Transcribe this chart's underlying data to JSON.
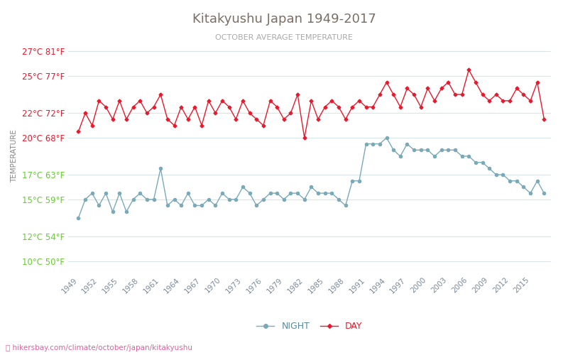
{
  "title": "Kitakyushu Japan 1949-2017",
  "subtitle": "OCTOBER AVERAGE TEMPERATURE",
  "ylabel": "TEMPERATURE",
  "url": "hikersbay.com/climate/october/japan/kitakyushu",
  "legend_night": "NIGHT",
  "legend_day": "DAY",
  "night_color": "#7aaab8",
  "day_color": "#e8192c",
  "title_color": "#7a6e65",
  "subtitle_color": "#aaaaaa",
  "ylabel_color": "#888888",
  "url_color": "#e060a0",
  "grid_color": "#d8e4ea",
  "yticks_celsius": [
    10,
    12,
    15,
    17,
    20,
    22,
    25,
    27
  ],
  "yticks_fahrenheit": [
    50,
    54,
    59,
    63,
    68,
    72,
    77,
    81
  ],
  "ytick_colors": [
    "#66cc33",
    "#66cc33",
    "#66cc33",
    "#66cc33",
    "#e8192c",
    "#e8192c",
    "#e8192c",
    "#e8192c"
  ],
  "years": [
    1949,
    1950,
    1951,
    1952,
    1953,
    1954,
    1955,
    1956,
    1957,
    1958,
    1959,
    1960,
    1961,
    1962,
    1963,
    1964,
    1965,
    1966,
    1967,
    1968,
    1969,
    1970,
    1971,
    1972,
    1973,
    1974,
    1975,
    1976,
    1977,
    1978,
    1979,
    1980,
    1981,
    1982,
    1983,
    1984,
    1985,
    1986,
    1987,
    1988,
    1989,
    1990,
    1991,
    1992,
    1993,
    1994,
    1995,
    1996,
    1997,
    1998,
    1999,
    2000,
    2001,
    2002,
    2003,
    2004,
    2005,
    2006,
    2007,
    2008,
    2009,
    2010,
    2011,
    2012,
    2013,
    2014,
    2015,
    2016,
    2017
  ],
  "day_temps": [
    20.5,
    22.0,
    21.0,
    23.0,
    22.5,
    21.5,
    23.0,
    21.5,
    22.5,
    23.0,
    22.0,
    22.5,
    23.5,
    21.5,
    21.0,
    22.5,
    21.5,
    22.5,
    21.0,
    23.0,
    22.0,
    23.0,
    22.5,
    21.5,
    23.0,
    22.0,
    21.5,
    21.0,
    23.0,
    22.5,
    21.5,
    22.0,
    23.5,
    20.0,
    23.0,
    21.5,
    22.5,
    23.0,
    22.5,
    21.5,
    22.5,
    23.0,
    22.5,
    22.5,
    23.5,
    24.5,
    23.5,
    22.5,
    24.0,
    23.5,
    22.5,
    24.0,
    23.0,
    24.0,
    24.5,
    23.5,
    23.5,
    25.5,
    24.5,
    23.5,
    23.0,
    23.5,
    23.0,
    23.0,
    24.0,
    23.5,
    23.0,
    24.5,
    21.5
  ],
  "night_temps": [
    13.5,
    15.0,
    15.5,
    14.5,
    15.5,
    14.0,
    15.5,
    14.0,
    15.0,
    15.5,
    15.0,
    15.0,
    17.5,
    14.5,
    15.0,
    14.5,
    15.5,
    14.5,
    14.5,
    15.0,
    14.5,
    15.5,
    15.0,
    15.0,
    16.0,
    15.5,
    14.5,
    15.0,
    15.5,
    15.5,
    15.0,
    15.5,
    15.5,
    15.0,
    16.0,
    15.5,
    15.5,
    15.5,
    15.0,
    14.5,
    16.5,
    16.5,
    19.5,
    19.5,
    19.5,
    20.0,
    19.0,
    18.5,
    19.5,
    19.0,
    19.0,
    19.0,
    18.5,
    19.0,
    19.0,
    19.0,
    18.5,
    18.5,
    18.0,
    18.0,
    17.5,
    17.0,
    17.0,
    16.5,
    16.5,
    16.0,
    15.5,
    16.5,
    15.5
  ]
}
